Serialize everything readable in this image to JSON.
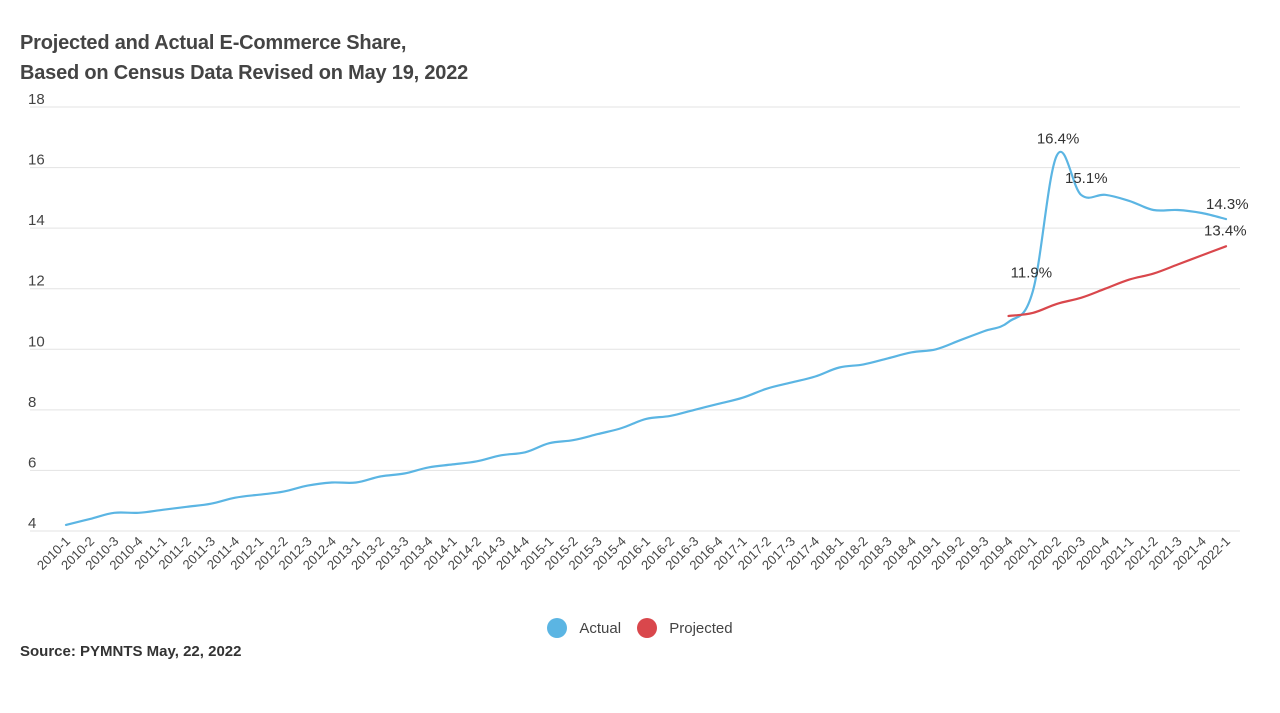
{
  "title": "Projected and Actual E-Commerce Share,",
  "subtitle": "Based on Census Data Revised on May 19, 2022",
  "source": "Source: PYMNTS May, 22, 2022",
  "colors": {
    "actual": "#5bb5e3",
    "projected": "#d9474c",
    "grid": "#e3e3e3",
    "text": "#444444"
  },
  "chart_data": {
    "type": "line",
    "title": "Projected and Actual E-Commerce Share,",
    "subtitle": "Based on Census Data Revised on May 19, 2022",
    "xlabel": "",
    "ylabel": "",
    "ylim": [
      4,
      18
    ],
    "yticks": [
      4,
      6,
      8,
      10,
      12,
      14,
      16,
      18
    ],
    "grid": true,
    "legend_position": "bottom",
    "categories": [
      "2010-1",
      "2010-2",
      "2010-3",
      "2010-4",
      "2011-1",
      "2011-2",
      "2011-3",
      "2011-4",
      "2012-1",
      "2012-2",
      "2012-3",
      "2012-4",
      "2013-1",
      "2013-2",
      "2013-3",
      "2013-4",
      "2014-1",
      "2014-2",
      "2014-3",
      "2014-4",
      "2015-1",
      "2015-2",
      "2015-3",
      "2015-4",
      "2016-1",
      "2016-2",
      "2016-3",
      "2016-4",
      "2017-1",
      "2017-2",
      "2017-3",
      "2017-4",
      "2018-1",
      "2018-2",
      "2018-3",
      "2018-4",
      "2019-1",
      "2019-2",
      "2019-3",
      "2019-4",
      "2020-1",
      "2020-2",
      "2020-3",
      "2020-4",
      "2021-1",
      "2021-2",
      "2021-3",
      "2021-4",
      "2022-1"
    ],
    "series": [
      {
        "name": "Actual",
        "values": [
          4.2,
          4.4,
          4.6,
          4.6,
          4.7,
          4.8,
          4.9,
          5.1,
          5.2,
          5.3,
          5.5,
          5.6,
          5.6,
          5.8,
          5.9,
          6.1,
          6.2,
          6.3,
          6.5,
          6.6,
          6.9,
          7.0,
          7.2,
          7.4,
          7.7,
          7.8,
          8.0,
          8.2,
          8.4,
          8.7,
          8.9,
          9.1,
          9.4,
          9.5,
          9.7,
          9.9,
          10.0,
          10.3,
          10.6,
          10.9,
          11.9,
          16.4,
          15.1,
          15.1,
          14.9,
          14.6,
          14.6,
          14.5,
          14.3
        ]
      },
      {
        "name": "Projected",
        "values": [
          null,
          null,
          null,
          null,
          null,
          null,
          null,
          null,
          null,
          null,
          null,
          null,
          null,
          null,
          null,
          null,
          null,
          null,
          null,
          null,
          null,
          null,
          null,
          null,
          null,
          null,
          null,
          null,
          null,
          null,
          null,
          null,
          null,
          null,
          null,
          null,
          null,
          null,
          null,
          11.1,
          11.2,
          11.5,
          11.7,
          12.0,
          12.3,
          12.5,
          12.8,
          13.1,
          13.4
        ]
      }
    ],
    "annotations": [
      {
        "category": "2020-1",
        "series": "Actual",
        "text": "11.9%"
      },
      {
        "category": "2020-2",
        "series": "Actual",
        "text": "16.4%"
      },
      {
        "category": "2020-3",
        "series": "Actual",
        "text": "15.1%"
      },
      {
        "category": "2022-1",
        "series": "Actual",
        "text": "14.3%"
      },
      {
        "category": "2022-1",
        "series": "Projected",
        "text": "13.4%"
      }
    ]
  }
}
